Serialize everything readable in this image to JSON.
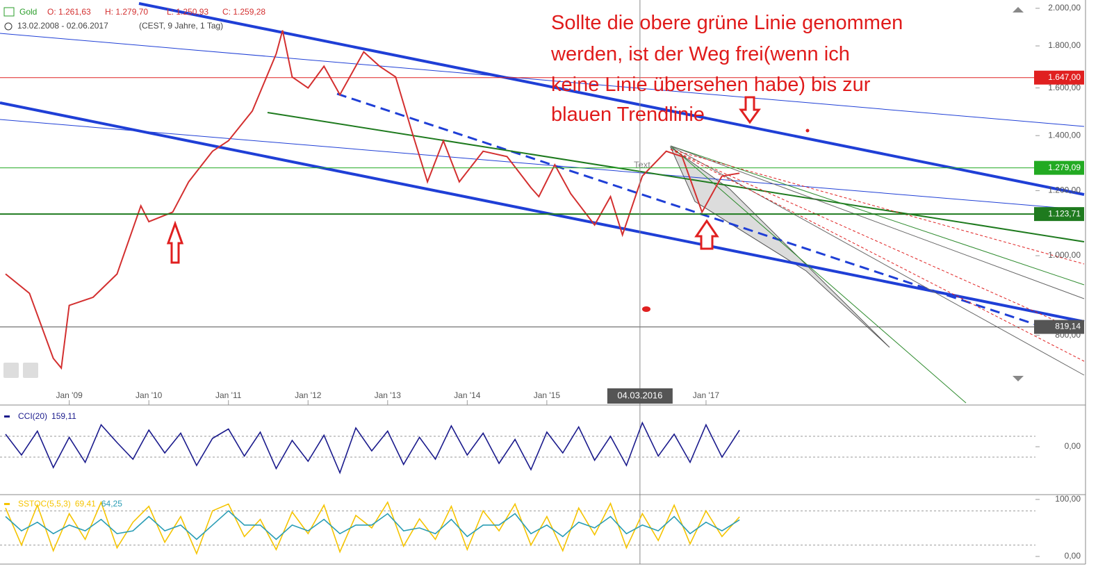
{
  "header": {
    "symbol": "Gold",
    "open": "O: 1.261,63",
    "high": "H: 1.279,70",
    "low": "L: 1.250,93",
    "close": "C: 1.259,28",
    "range": "13.02.2008 - 02.06.2017",
    "info": "(CEST, 9 Jahre, 1 Tag)"
  },
  "annotations": {
    "note": [
      "Sollte die obere grüne Linie genommen",
      "werden, ist der Weg frei(wenn ich",
      "keine Linie übersehen habe) bis zur",
      "blauen Trendlinie"
    ],
    "text_label": "Text"
  },
  "chart_data": [
    {
      "type": "line",
      "log_scale": true,
      "x": [
        2008.2,
        2008.5,
        2008.8,
        2008.9,
        2009.0,
        2009.3,
        2009.6,
        2009.9,
        2010.0,
        2010.3,
        2010.5,
        2010.8,
        2011.0,
        2011.3,
        2011.6,
        2011.68,
        2011.8,
        2012.0,
        2012.2,
        2012.4,
        2012.7,
        2012.9,
        2013.1,
        2013.3,
        2013.5,
        2013.7,
        2013.9,
        2014.2,
        2014.5,
        2014.8,
        2014.9,
        2015.1,
        2015.3,
        2015.6,
        2015.8,
        2015.95,
        2016.2,
        2016.5,
        2016.7,
        2016.95,
        2017.2,
        2017.42
      ],
      "series": [
        {
          "color": "#d32f2f",
          "values": [
            950,
            900,
            750,
            730,
            870,
            890,
            950,
            1150,
            1100,
            1130,
            1230,
            1340,
            1380,
            1500,
            1760,
            1880,
            1650,
            1600,
            1700,
            1570,
            1770,
            1700,
            1650,
            1420,
            1230,
            1380,
            1230,
            1340,
            1320,
            1210,
            1180,
            1290,
            1190,
            1090,
            1180,
            1060,
            1250,
            1340,
            1320,
            1130,
            1250,
            1260
          ]
        }
      ],
      "xlim": [
        2008.13,
        2021.75
      ],
      "ylim": [
        662,
        2047
      ],
      "xticks": [
        {
          "value": 2009,
          "label": "Jan '09"
        },
        {
          "value": 2010,
          "label": "Jan '10"
        },
        {
          "value": 2011,
          "label": "Jan '11"
        },
        {
          "value": 2012,
          "label": "Jan '12"
        },
        {
          "value": 2013,
          "label": "Jan '13"
        },
        {
          "value": 2014,
          "label": "Jan '14"
        },
        {
          "value": 2015,
          "label": "Jan '15"
        },
        {
          "value": 2017,
          "label": "Jan '17"
        }
      ],
      "yticks": [
        {
          "value": 2000,
          "label": "2.000,00"
        },
        {
          "value": 1800,
          "label": "1.800,00"
        },
        {
          "value": 1600,
          "label": "1.600,00"
        },
        {
          "value": 1400,
          "label": "1.400,00"
        },
        {
          "value": 1200,
          "label": "1.200,00"
        },
        {
          "value": 1000,
          "label": "1.000,00"
        },
        {
          "value": 800,
          "label": "800,00"
        }
      ],
      "price_lines": [
        {
          "value": 1647,
          "label": "1.647,00",
          "color": "#e02020"
        },
        {
          "value": 1279.09,
          "label": "1.279,09",
          "color": "#22aa22"
        },
        {
          "value": 1123.71,
          "label": "1.123,71",
          "color": "#1e7a1e"
        },
        {
          "value": 819.14,
          "label": "819,14",
          "color": "#555555"
        }
      ],
      "crosshair": {
        "x": 2016.17,
        "label": "04.03.2016"
      }
    },
    {
      "type": "line",
      "title": "CCI(20)",
      "x": [
        2008.2,
        2008.4,
        2008.6,
        2008.8,
        2009.0,
        2009.2,
        2009.4,
        2009.6,
        2009.8,
        2010.0,
        2010.2,
        2010.4,
        2010.6,
        2010.8,
        2011.0,
        2011.2,
        2011.4,
        2011.6,
        2011.8,
        2012.0,
        2012.2,
        2012.4,
        2012.6,
        2012.8,
        2013.0,
        2013.2,
        2013.4,
        2013.6,
        2013.8,
        2014.0,
        2014.2,
        2014.4,
        2014.6,
        2014.8,
        2015.0,
        2015.2,
        2015.4,
        2015.6,
        2015.8,
        2016.0,
        2016.2,
        2016.4,
        2016.6,
        2016.8,
        2017.0,
        2017.2,
        2017.42
      ],
      "series": [
        {
          "color": "#1a1a8c",
          "last_label": "159,11",
          "values": [
            120,
            -80,
            150,
            -200,
            90,
            -150,
            210,
            40,
            -120,
            160,
            -60,
            130,
            -180,
            80,
            170,
            -90,
            140,
            -210,
            60,
            -140,
            110,
            -250,
            180,
            -40,
            150,
            -170,
            90,
            -120,
            200,
            -80,
            130,
            -160,
            70,
            -220,
            140,
            -60,
            190,
            -130,
            100,
            -180,
            230,
            -90,
            120,
            -150,
            210,
            -100,
            159.11
          ]
        }
      ],
      "xlim": [
        2008.13,
        2021.75
      ],
      "ylim": [
        -460,
        367
      ],
      "levels": [
        -100,
        100
      ],
      "yticks": [
        {
          "value": 0,
          "label": "0,00"
        }
      ]
    },
    {
      "type": "line",
      "title": "SSTOC(5,5,3)",
      "x": [
        2008.2,
        2008.4,
        2008.6,
        2008.8,
        2009.0,
        2009.2,
        2009.4,
        2009.6,
        2009.8,
        2010.0,
        2010.2,
        2010.4,
        2010.6,
        2010.8,
        2011.0,
        2011.2,
        2011.4,
        2011.6,
        2011.8,
        2012.0,
        2012.2,
        2012.4,
        2012.6,
        2012.8,
        2013.0,
        2013.2,
        2013.4,
        2013.6,
        2013.8,
        2014.0,
        2014.2,
        2014.4,
        2014.6,
        2014.8,
        2015.0,
        2015.2,
        2015.4,
        2015.6,
        2015.8,
        2016.0,
        2016.2,
        2016.4,
        2016.6,
        2016.8,
        2017.0,
        2017.2,
        2017.42
      ],
      "series": [
        {
          "color": "#f5c400",
          "last_label": "69,41",
          "values": [
            85,
            20,
            90,
            10,
            75,
            30,
            95,
            15,
            60,
            88,
            25,
            70,
            5,
            80,
            92,
            35,
            65,
            12,
            78,
            40,
            90,
            8,
            72,
            50,
            95,
            18,
            66,
            30,
            88,
            12,
            80,
            45,
            92,
            20,
            70,
            10,
            85,
            38,
            93,
            15,
            75,
            28,
            90,
            22,
            80,
            35,
            69.41
          ]
        },
        {
          "color": "#2a9db5",
          "last_label": "64,25",
          "values": [
            70,
            45,
            60,
            40,
            55,
            45,
            65,
            40,
            45,
            70,
            45,
            55,
            30,
            55,
            80,
            55,
            55,
            30,
            55,
            45,
            65,
            40,
            55,
            55,
            75,
            45,
            50,
            40,
            65,
            35,
            55,
            55,
            75,
            40,
            55,
            35,
            60,
            50,
            70,
            40,
            55,
            45,
            70,
            40,
            60,
            45,
            64.25
          ]
        }
      ],
      "xlim": [
        2008.13,
        2021.75
      ],
      "ylim": [
        -11,
        106
      ],
      "levels": [
        20,
        80
      ],
      "yticks": [
        {
          "value": 100,
          "label": "100,00"
        },
        {
          "value": 0,
          "label": "0,00"
        }
      ]
    }
  ]
}
